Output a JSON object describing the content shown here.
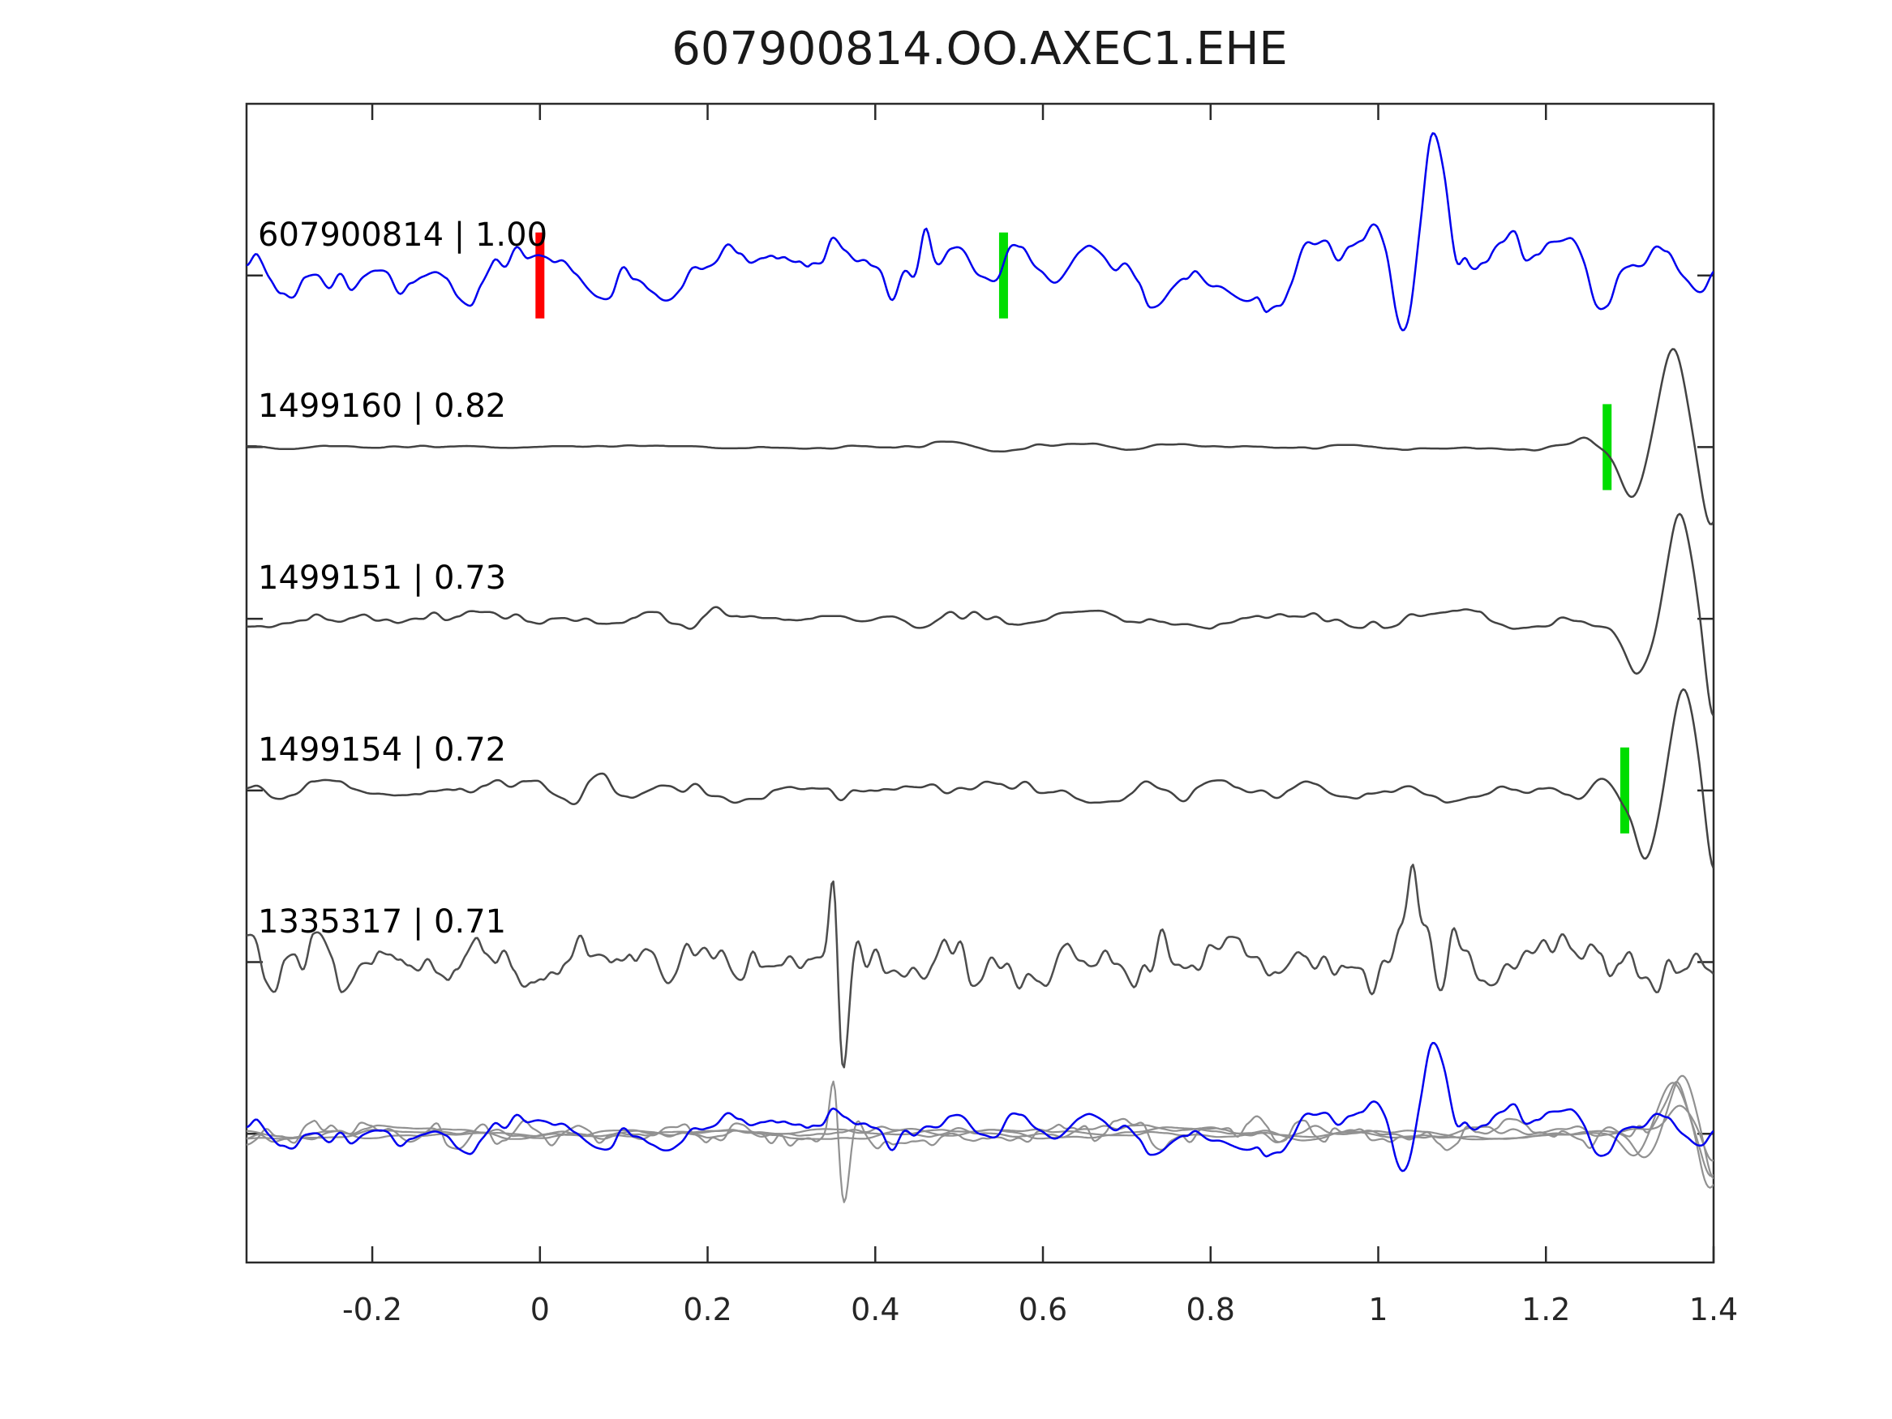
{
  "title": "607900814.OO.AXEC1.EHE",
  "chart_data": {
    "type": "line",
    "title": "607900814.OO.AXEC1.EHE",
    "xlabel": "",
    "ylabel": "",
    "xlim": [
      -0.35,
      1.4
    ],
    "grid": false,
    "legend": "none",
    "xticks": [
      {
        "value": -0.2,
        "label": "-0.2"
      },
      {
        "value": 0,
        "label": "0"
      },
      {
        "value": 0.2,
        "label": "0.2"
      },
      {
        "value": 0.4,
        "label": "0.4"
      },
      {
        "value": 0.6,
        "label": "0.6"
      },
      {
        "value": 0.8,
        "label": "0.8"
      },
      {
        "value": 1,
        "label": "1"
      },
      {
        "value": 1.2,
        "label": "1.2"
      },
      {
        "value": 1.4,
        "label": "1.4"
      }
    ],
    "colors": {
      "template_blue": "#0000ee",
      "detection_gray": "#424242",
      "overlay_gray": "#919191",
      "pick_red": "#ff0000",
      "pick_green": "#00dd00",
      "spine": "#2a2a2a"
    },
    "traces": [
      {
        "id": "607900814",
        "correlation": "1.00",
        "label": "607900814 | 1.00",
        "row": 0,
        "color": "#0000ee",
        "linewidth": 2.5,
        "picks": [
          {
            "t": 0.0,
            "color": "#ff0000"
          },
          {
            "t": 0.553,
            "color": "#00dd00"
          }
        ],
        "synth": {
          "seed": 101,
          "step1": 0.022,
          "step2": 0.008,
          "w2": 0.45,
          "envelope": [
            [
              -0.35,
              36
            ],
            [
              0.7,
              36
            ],
            [
              0.85,
              48
            ],
            [
              0.95,
              70
            ],
            [
              1.02,
              85
            ],
            [
              1.09,
              85
            ],
            [
              1.16,
              48
            ],
            [
              1.25,
              40
            ],
            [
              1.4,
              36
            ]
          ],
          "events": [
            {
              "t": 0.46,
              "w": 0.008,
              "a": -45
            },
            {
              "t": 1.025,
              "w": 0.012,
              "a": 55
            },
            {
              "t": 1.063,
              "w": 0.014,
              "a": -95
            }
          ]
        }
      },
      {
        "id": "1499160",
        "correlation": "0.82",
        "label": "1499160 | 0.82",
        "row": 1,
        "color": "#424242",
        "linewidth": 2.5,
        "picks": [
          {
            "t": 1.273,
            "color": "#00dd00"
          }
        ],
        "synth": {
          "seed": 202,
          "step1": 0.03,
          "step2": 0.01,
          "w2": 0.4,
          "envelope": [
            [
              -0.35,
              2.5
            ],
            [
              0.35,
              3
            ],
            [
              0.45,
              7
            ],
            [
              0.6,
              6
            ],
            [
              0.75,
              5
            ],
            [
              0.95,
              4
            ],
            [
              1.1,
              4.5
            ],
            [
              1.22,
              5
            ],
            [
              1.4,
              5
            ]
          ],
          "events": [
            {
              "t": 1.247,
              "w": 0.014,
              "a": -10
            },
            {
              "t": 1.303,
              "w": 0.02,
              "a": 62
            },
            {
              "t": 1.352,
              "w": 0.021,
              "a": -122
            },
            {
              "t": 1.397,
              "w": 0.016,
              "a": 95
            }
          ]
        }
      },
      {
        "id": "1499151",
        "correlation": "0.73",
        "label": "1499151 | 0.73",
        "row": 2,
        "color": "#424242",
        "linewidth": 2.5,
        "picks": [],
        "synth": {
          "seed": 303,
          "step1": 0.02,
          "step2": 0.008,
          "w2": 0.5,
          "envelope": [
            [
              -0.35,
              10
            ],
            [
              1.2,
              10
            ],
            [
              1.28,
              10
            ],
            [
              1.4,
              9
            ]
          ],
          "events": [
            {
              "t": 1.31,
              "w": 0.02,
              "a": 60
            },
            {
              "t": 1.359,
              "w": 0.021,
              "a": -120
            },
            {
              "t": 1.4,
              "w": 0.014,
              "a": 120
            }
          ]
        }
      },
      {
        "id": "1499154",
        "correlation": "0.72",
        "label": "1499154 | 0.72",
        "row": 3,
        "color": "#424242",
        "linewidth": 2.5,
        "picks": [
          {
            "t": 1.294,
            "color": "#00dd00"
          }
        ],
        "synth": {
          "seed": 404,
          "step1": 0.022,
          "step2": 0.009,
          "w2": 0.5,
          "envelope": [
            [
              -0.35,
              14
            ],
            [
              0.4,
              15
            ],
            [
              0.8,
              13
            ],
            [
              1.1,
              13
            ],
            [
              1.2,
              12
            ],
            [
              1.4,
              12
            ]
          ],
          "events": [
            {
              "t": 1.268,
              "w": 0.018,
              "a": -30
            },
            {
              "t": 1.318,
              "w": 0.02,
              "a": 75
            },
            {
              "t": 1.363,
              "w": 0.02,
              "a": -122
            },
            {
              "t": 1.4,
              "w": 0.013,
              "a": 110
            }
          ]
        }
      },
      {
        "id": "1335317",
        "correlation": "0.71",
        "label": "1335317 | 0.71",
        "row": 4,
        "color": "#4d4d4d",
        "linewidth": 2.5,
        "picks": [],
        "synth": {
          "seed": 505,
          "step1": 0.016,
          "step2": 0.0065,
          "w2": 0.6,
          "envelope": [
            [
              -0.35,
              30
            ],
            [
              0.3,
              32
            ],
            [
              0.55,
              30
            ],
            [
              0.95,
              32
            ],
            [
              1.02,
              40
            ],
            [
              1.1,
              40
            ],
            [
              1.2,
              30
            ],
            [
              1.4,
              28
            ]
          ],
          "events": [
            {
              "t": 0.351,
              "w": 0.007,
              "a": -135
            },
            {
              "t": 0.362,
              "w": 0.009,
              "a": 150
            },
            {
              "t": 1.042,
              "w": 0.008,
              "a": -70
            },
            {
              "t": 1.088,
              "w": 0.008,
              "a": -62
            }
          ]
        }
      }
    ],
    "overlay_row": {
      "row": 5,
      "label": "",
      "members": [
        {
          "name": "overlay-gray-spike",
          "color": "#919191",
          "linewidth": 2.2,
          "synth": {
            "seed": 606,
            "step1": 0.016,
            "step2": 0.0065,
            "w2": 0.6,
            "envelope": [
              [
                -0.35,
                16
              ],
              [
                1.4,
                15
              ]
            ],
            "events": [
              {
                "t": 0.351,
                "w": 0.007,
                "a": -80
              },
              {
                "t": 0.362,
                "w": 0.009,
                "a": 92
              },
              {
                "t": 1.355,
                "w": 0.02,
                "a": -55
              },
              {
                "t": 1.395,
                "w": 0.016,
                "a": 60
              }
            ]
          }
        },
        {
          "name": "overlay-gray-flat-1",
          "color": "#919191",
          "linewidth": 2.2,
          "synth": {
            "seed": 707,
            "step1": 0.03,
            "step2": 0.012,
            "w2": 0.4,
            "envelope": [
              [
                -0.35,
                7
              ],
              [
                1.25,
                7
              ],
              [
                1.4,
                7
              ]
            ],
            "events": [
              {
                "t": 1.305,
                "w": 0.02,
                "a": 30
              },
              {
                "t": 1.352,
                "w": 0.021,
                "a": -62
              },
              {
                "t": 1.397,
                "w": 0.015,
                "a": 48
              }
            ]
          }
        },
        {
          "name": "overlay-gray-flat-2",
          "color": "#919191",
          "linewidth": 2.2,
          "synth": {
            "seed": 808,
            "step1": 0.022,
            "step2": 0.009,
            "w2": 0.5,
            "envelope": [
              [
                -0.35,
                9
              ],
              [
                1.25,
                8
              ],
              [
                1.4,
                8
              ]
            ],
            "events": [
              {
                "t": 1.318,
                "w": 0.02,
                "a": 38
              },
              {
                "t": 1.363,
                "w": 0.02,
                "a": -70
              },
              {
                "t": 1.4,
                "w": 0.013,
                "a": 55
              }
            ]
          }
        },
        {
          "name": "overlay-gray-flat-3",
          "color": "#919191",
          "linewidth": 2.2,
          "synth": {
            "seed": 909,
            "step1": 0.028,
            "step2": 0.011,
            "w2": 0.4,
            "envelope": [
              [
                -0.35,
                5
              ],
              [
                1.25,
                5
              ],
              [
                1.4,
                5
              ]
            ],
            "events": [
              {
                "t": 1.36,
                "w": 0.02,
                "a": -40
              },
              {
                "t": 1.398,
                "w": 0.013,
                "a": 30
              }
            ]
          }
        },
        {
          "name": "overlay-blue-template",
          "color": "#0000ee",
          "linewidth": 2.5,
          "synth": {
            "seed": 101,
            "step1": 0.022,
            "step2": 0.008,
            "w2": 0.45,
            "envelope": [
              [
                -0.35,
                24
              ],
              [
                0.7,
                24
              ],
              [
                0.85,
                30
              ],
              [
                0.95,
                42
              ],
              [
                1.02,
                55
              ],
              [
                1.09,
                55
              ],
              [
                1.16,
                32
              ],
              [
                1.25,
                26
              ],
              [
                1.4,
                26
              ]
            ],
            "events": [
              {
                "t": 1.025,
                "w": 0.012,
                "a": 38
              },
              {
                "t": 1.063,
                "w": 0.014,
                "a": -60
              }
            ]
          }
        }
      ]
    },
    "layout": {
      "plot_left": 304,
      "plot_top": 128,
      "plot_right": 2113,
      "plot_bottom": 1557,
      "n_rows": 6.75,
      "tick_len": 20,
      "pick_width": 11,
      "pick_height": 106,
      "tick_label_baseline_y": 1628,
      "trace_label_x": 318,
      "trace_label_dy": -72
    }
  }
}
